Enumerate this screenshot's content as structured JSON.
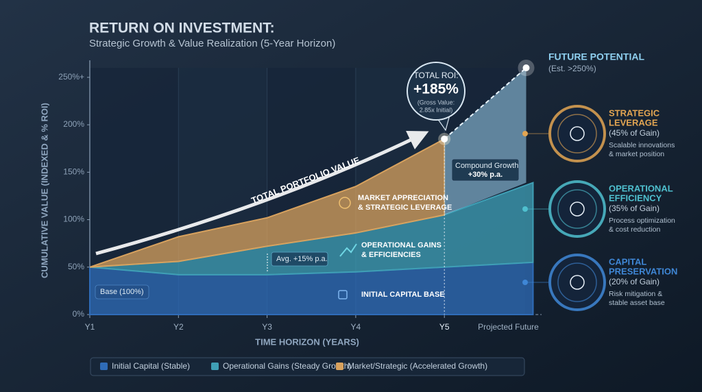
{
  "chart_data": {
    "type": "area",
    "stacked": true,
    "title": "RETURN ON INVESTMENT:",
    "subtitle": "Strategic Growth & Value Realization (5-Year Horizon)",
    "x_label": "TIME HORIZON (YEARS)",
    "y_label": "CUMULATIVE VALUE (INDEXED & % ROI)",
    "categories": [
      "Y1",
      "Y2",
      "Y3",
      "Y4",
      "Y5",
      "Projected Future"
    ],
    "series": [
      {
        "name": "Initial Capital (Stable)",
        "color": "#2f6cb8",
        "values": [
          50,
          42,
          42,
          45,
          50,
          55
        ]
      },
      {
        "name": "Operational Gains (Steady Growth)",
        "color": "#3f9fb5",
        "values": [
          0,
          14,
          30,
          41,
          55,
          84
        ]
      },
      {
        "name": "Market/Strategic (Accelerated Growth)",
        "color": "#d8a25e",
        "values": [
          0,
          26,
          30,
          49,
          80,
          null
        ]
      }
    ],
    "ylim": [
      0,
      260
    ],
    "yticks": [
      {
        "value": 0,
        "label": "0%"
      },
      {
        "value": 50,
        "label": "50%"
      },
      {
        "value": 100,
        "label": "100%"
      },
      {
        "value": 150,
        "label": "150%"
      },
      {
        "value": 200,
        "label": "200%"
      },
      {
        "value": 250,
        "label": "250%+"
      }
    ],
    "grid": false,
    "projection": {
      "title": "FUTURE POTENTIAL",
      "note": "(Est. >250%)",
      "value": 260,
      "color": "#9fd3f0"
    },
    "annotations": {
      "total_line": "TOTAL PORTFOLIO VALUE",
      "market": [
        "MARKET APPRECIATION",
        "& STRATEGIC LEVERAGE"
      ],
      "operational": [
        "OPERATIONAL GAINS",
        "& EFFICIENCIES"
      ],
      "initial": "INITIAL CAPITAL BASE",
      "avg": "Avg. +15% p.a.",
      "base": "Base (100%)",
      "compound": [
        "Compound Growth",
        "+30% p.a."
      ],
      "roi": {
        "label": "TOTAL ROI:",
        "value": "+185%",
        "note": [
          "(Gross Value:",
          "2.85x Initial)"
        ]
      }
    }
  },
  "panels": [
    {
      "title": [
        "STRATEGIC",
        "LEVERAGE"
      ],
      "share": "(45% of Gain)",
      "desc": [
        "Scalable innovations",
        "& market position"
      ],
      "color": "#e2a552"
    },
    {
      "title": [
        "OPERATIONAL",
        "EFFICIENCY"
      ],
      "share": "(35% of Gain)",
      "desc": [
        "Process optimization",
        "& cost reduction"
      ],
      "color": "#4fc0cf"
    },
    {
      "title": [
        "CAPITAL",
        "PRESERVATION"
      ],
      "share": "(20% of Gain)",
      "desc": [
        "Risk mitigation &",
        "stable asset base"
      ],
      "color": "#3f87d6"
    }
  ]
}
